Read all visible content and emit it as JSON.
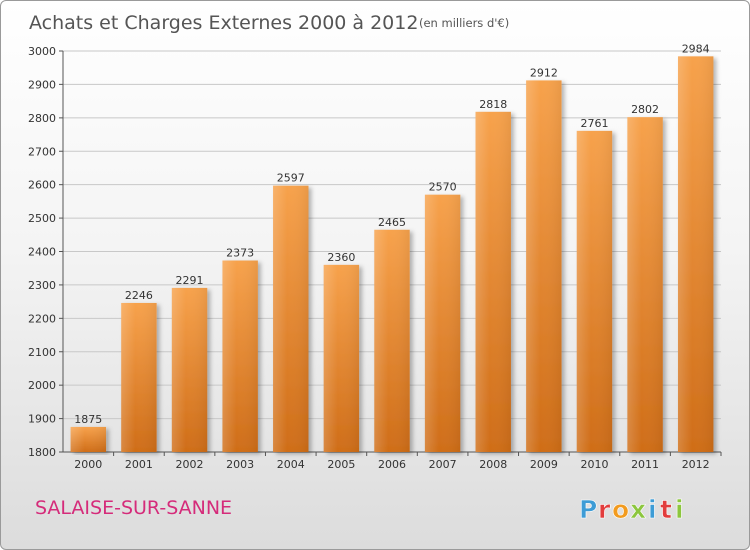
{
  "header": {
    "title": "Achats et Charges Externes 2000 à 2012",
    "unit_note": "(en milliers d'€)"
  },
  "footer": {
    "town": "SALAISE-SUR-SANNE",
    "logo_text": "Proxiti",
    "logo_colors": [
      "#3d9cd6",
      "#e23c3c",
      "#f29b1f",
      "#8cc63e",
      "#3d9cd6",
      "#e23c3c",
      "#8cc63e"
    ]
  },
  "colors": {
    "bar_top": "#f7a24c",
    "bar_bottom": "#cf6d18",
    "grid": "#c8c8c8",
    "town": "#d52b7a",
    "title": "#555555"
  },
  "chart_data": {
    "type": "bar",
    "categories": [
      "2000",
      "2001",
      "2002",
      "2003",
      "2004",
      "2005",
      "2006",
      "2007",
      "2008",
      "2009",
      "2010",
      "2011",
      "2012"
    ],
    "values": [
      1875,
      2246,
      2291,
      2373,
      2597,
      2360,
      2465,
      2570,
      2818,
      2912,
      2761,
      2802,
      2984
    ],
    "title": "Achats et Charges Externes 2000 à 2012",
    "subtitle": "(en milliers d'€)",
    "xlabel": "",
    "ylabel": "",
    "ylim": [
      1800,
      3000
    ],
    "yticks": [
      1800,
      1900,
      2000,
      2100,
      2200,
      2300,
      2400,
      2500,
      2600,
      2700,
      2800,
      2900,
      3000
    ],
    "grid": true,
    "data_labels": true
  }
}
